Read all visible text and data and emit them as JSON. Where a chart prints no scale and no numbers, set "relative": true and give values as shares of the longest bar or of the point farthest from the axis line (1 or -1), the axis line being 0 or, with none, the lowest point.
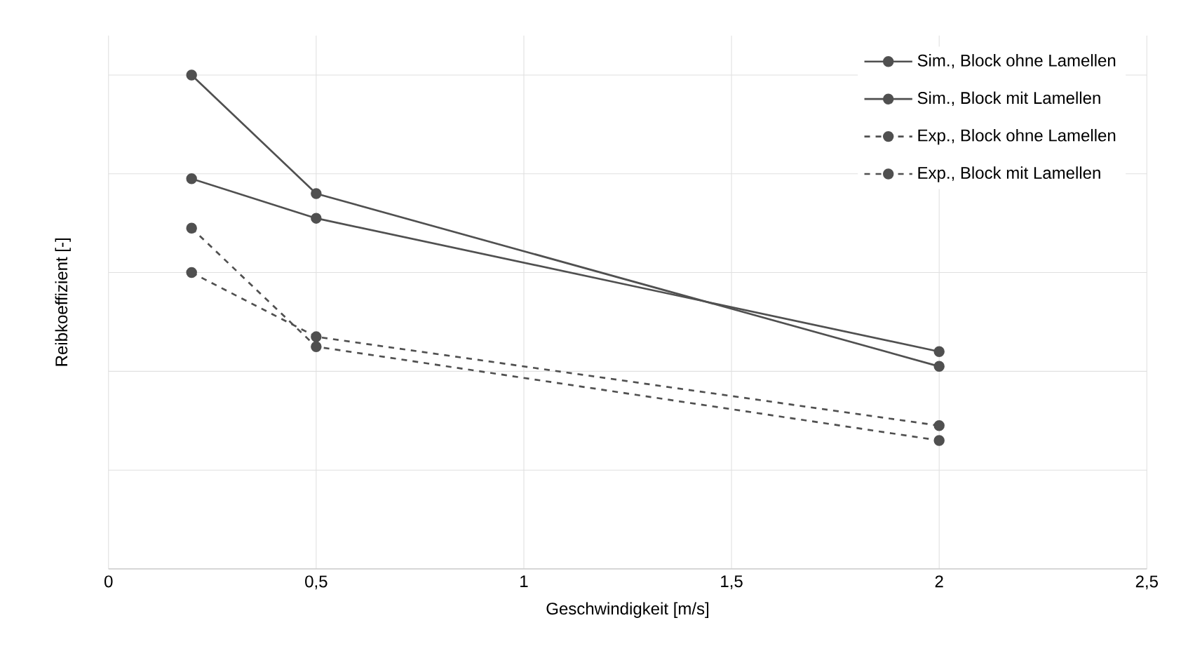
{
  "chart_data": {
    "type": "line",
    "xlabel": "Geschwindigkeit [m/s]",
    "ylabel": "Reibkoeffizient [-]",
    "relative": true,
    "x": [
      0.2,
      0.5,
      2
    ],
    "xlim": [
      0,
      2.5
    ],
    "xticks": [
      0,
      {
        "value": 0.5,
        "label": "0,5"
      },
      1,
      {
        "value": 1.5,
        "label": "1,5"
      },
      2,
      {
        "value": 2.5,
        "label": "2,5"
      }
    ],
    "tick_labels": "x",
    "grid": true,
    "legend": "top right",
    "marker": "circle",
    "series": [
      {
        "name": "Sim., Block ohne Lamellen",
        "color": "#505050",
        "line_style": "solid",
        "values": [
          1.0,
          0.76,
          0.41
        ]
      },
      {
        "name": "Sim., Block mit Lamellen",
        "color": "#505050",
        "line_style": "solid",
        "values": [
          0.79,
          0.71,
          0.44
        ]
      },
      {
        "name": "Exp., Block ohne Lamellen",
        "color": "#505050",
        "line_style": "dashed",
        "values": [
          0.69,
          0.45,
          0.26
        ]
      },
      {
        "name": "Exp., Block mit Lamellen",
        "color": "#505050",
        "line_style": "dashed",
        "values": [
          0.6,
          0.47,
          0.29
        ]
      }
    ]
  }
}
